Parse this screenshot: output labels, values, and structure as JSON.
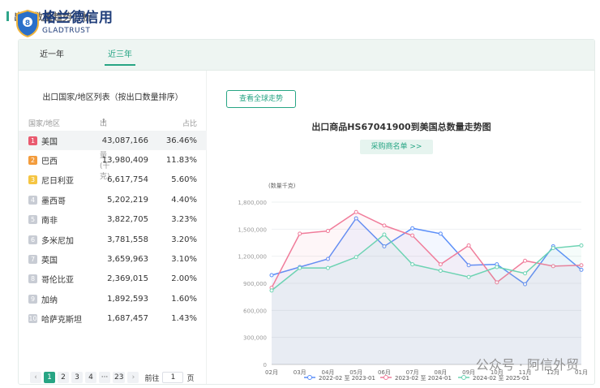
{
  "section_title": "出口数量趋势分析",
  "logo": {
    "cn": "格兰德信用",
    "en": "GLADTRUST"
  },
  "tabs": [
    {
      "label": "近一年",
      "active": false
    },
    {
      "label": "近三年",
      "active": true
    }
  ],
  "left": {
    "panel_title": "出口国家/地区列表（按出口数量排序）",
    "columns": {
      "country": "国家/地区",
      "qty": "出口数量(千克)",
      "pct": "占比"
    },
    "rows": [
      {
        "rank": "1",
        "country": "美国",
        "qty": "43,087,166",
        "pct": "36.46%",
        "color": "#e95a6f"
      },
      {
        "rank": "2",
        "country": "巴西",
        "qty": "13,980,409",
        "pct": "11.83%",
        "color": "#f39c3c"
      },
      {
        "rank": "3",
        "country": "尼日利亚",
        "qty": "6,617,754",
        "pct": "5.60%",
        "color": "#f5c542"
      },
      {
        "rank": "4",
        "country": "墨西哥",
        "qty": "5,202,219",
        "pct": "4.40%",
        "color": "#c8ccd4"
      },
      {
        "rank": "5",
        "country": "南非",
        "qty": "3,822,705",
        "pct": "3.23%",
        "color": "#c8ccd4"
      },
      {
        "rank": "6",
        "country": "多米尼加",
        "qty": "3,781,558",
        "pct": "3.20%",
        "color": "#c8ccd4"
      },
      {
        "rank": "7",
        "country": "英国",
        "qty": "3,659,963",
        "pct": "3.10%",
        "color": "#c8ccd4"
      },
      {
        "rank": "8",
        "country": "哥伦比亚",
        "qty": "2,369,015",
        "pct": "2.00%",
        "color": "#c8ccd4"
      },
      {
        "rank": "9",
        "country": "加纳",
        "qty": "1,892,593",
        "pct": "1.60%",
        "color": "#c8ccd4"
      },
      {
        "rank": "10",
        "country": "哈萨克斯坦",
        "qty": "1,687,457",
        "pct": "1.43%",
        "color": "#c8ccd4"
      }
    ],
    "pagination": {
      "prev": "‹",
      "pages": [
        "1",
        "2",
        "3",
        "4"
      ],
      "ellipsis": "···",
      "last": "23",
      "next": "›",
      "goto_label": "前往",
      "goto_value": "1",
      "page_unit": "页"
    }
  },
  "right": {
    "global_btn": "查看全球走势",
    "chart_title": "出口商品HS67041900到美国总数量走势图",
    "buyer_btn": "采购商名单 >>"
  },
  "watermark": "公众号 · 阿信外贸",
  "chart_data": {
    "type": "line",
    "ylabel": "(数量千克)",
    "categories": [
      "02月",
      "03月",
      "04月",
      "05月",
      "06月",
      "07月",
      "08月",
      "09月",
      "10月",
      "11月",
      "12月",
      "01月"
    ],
    "ylim": [
      0,
      1800000
    ],
    "yticks": [
      0,
      300000,
      600000,
      900000,
      1200000,
      1500000,
      1800000
    ],
    "ytick_labels": [
      "0",
      "300,000",
      "600,000",
      "900,000",
      "1,200,000",
      "1,500,000",
      "1,800,000"
    ],
    "series": [
      {
        "name": "2022-02 至 2023-01",
        "color": "#5b8ff9",
        "values": [
          990000,
          1080000,
          1170000,
          1620000,
          1310000,
          1510000,
          1450000,
          1100000,
          1110000,
          890000,
          1310000,
          1050000
        ]
      },
      {
        "name": "2023-02 至 2024-01",
        "color": "#f07c9a",
        "values": [
          850000,
          1450000,
          1480000,
          1690000,
          1540000,
          1430000,
          1110000,
          1320000,
          910000,
          1150000,
          1090000,
          1100000
        ]
      },
      {
        "name": "2024-02 至 2025-01",
        "color": "#6dd3b3",
        "values": [
          820000,
          1070000,
          1070000,
          1190000,
          1440000,
          1110000,
          1040000,
          970000,
          1080000,
          1010000,
          1290000,
          1320000
        ]
      }
    ]
  }
}
